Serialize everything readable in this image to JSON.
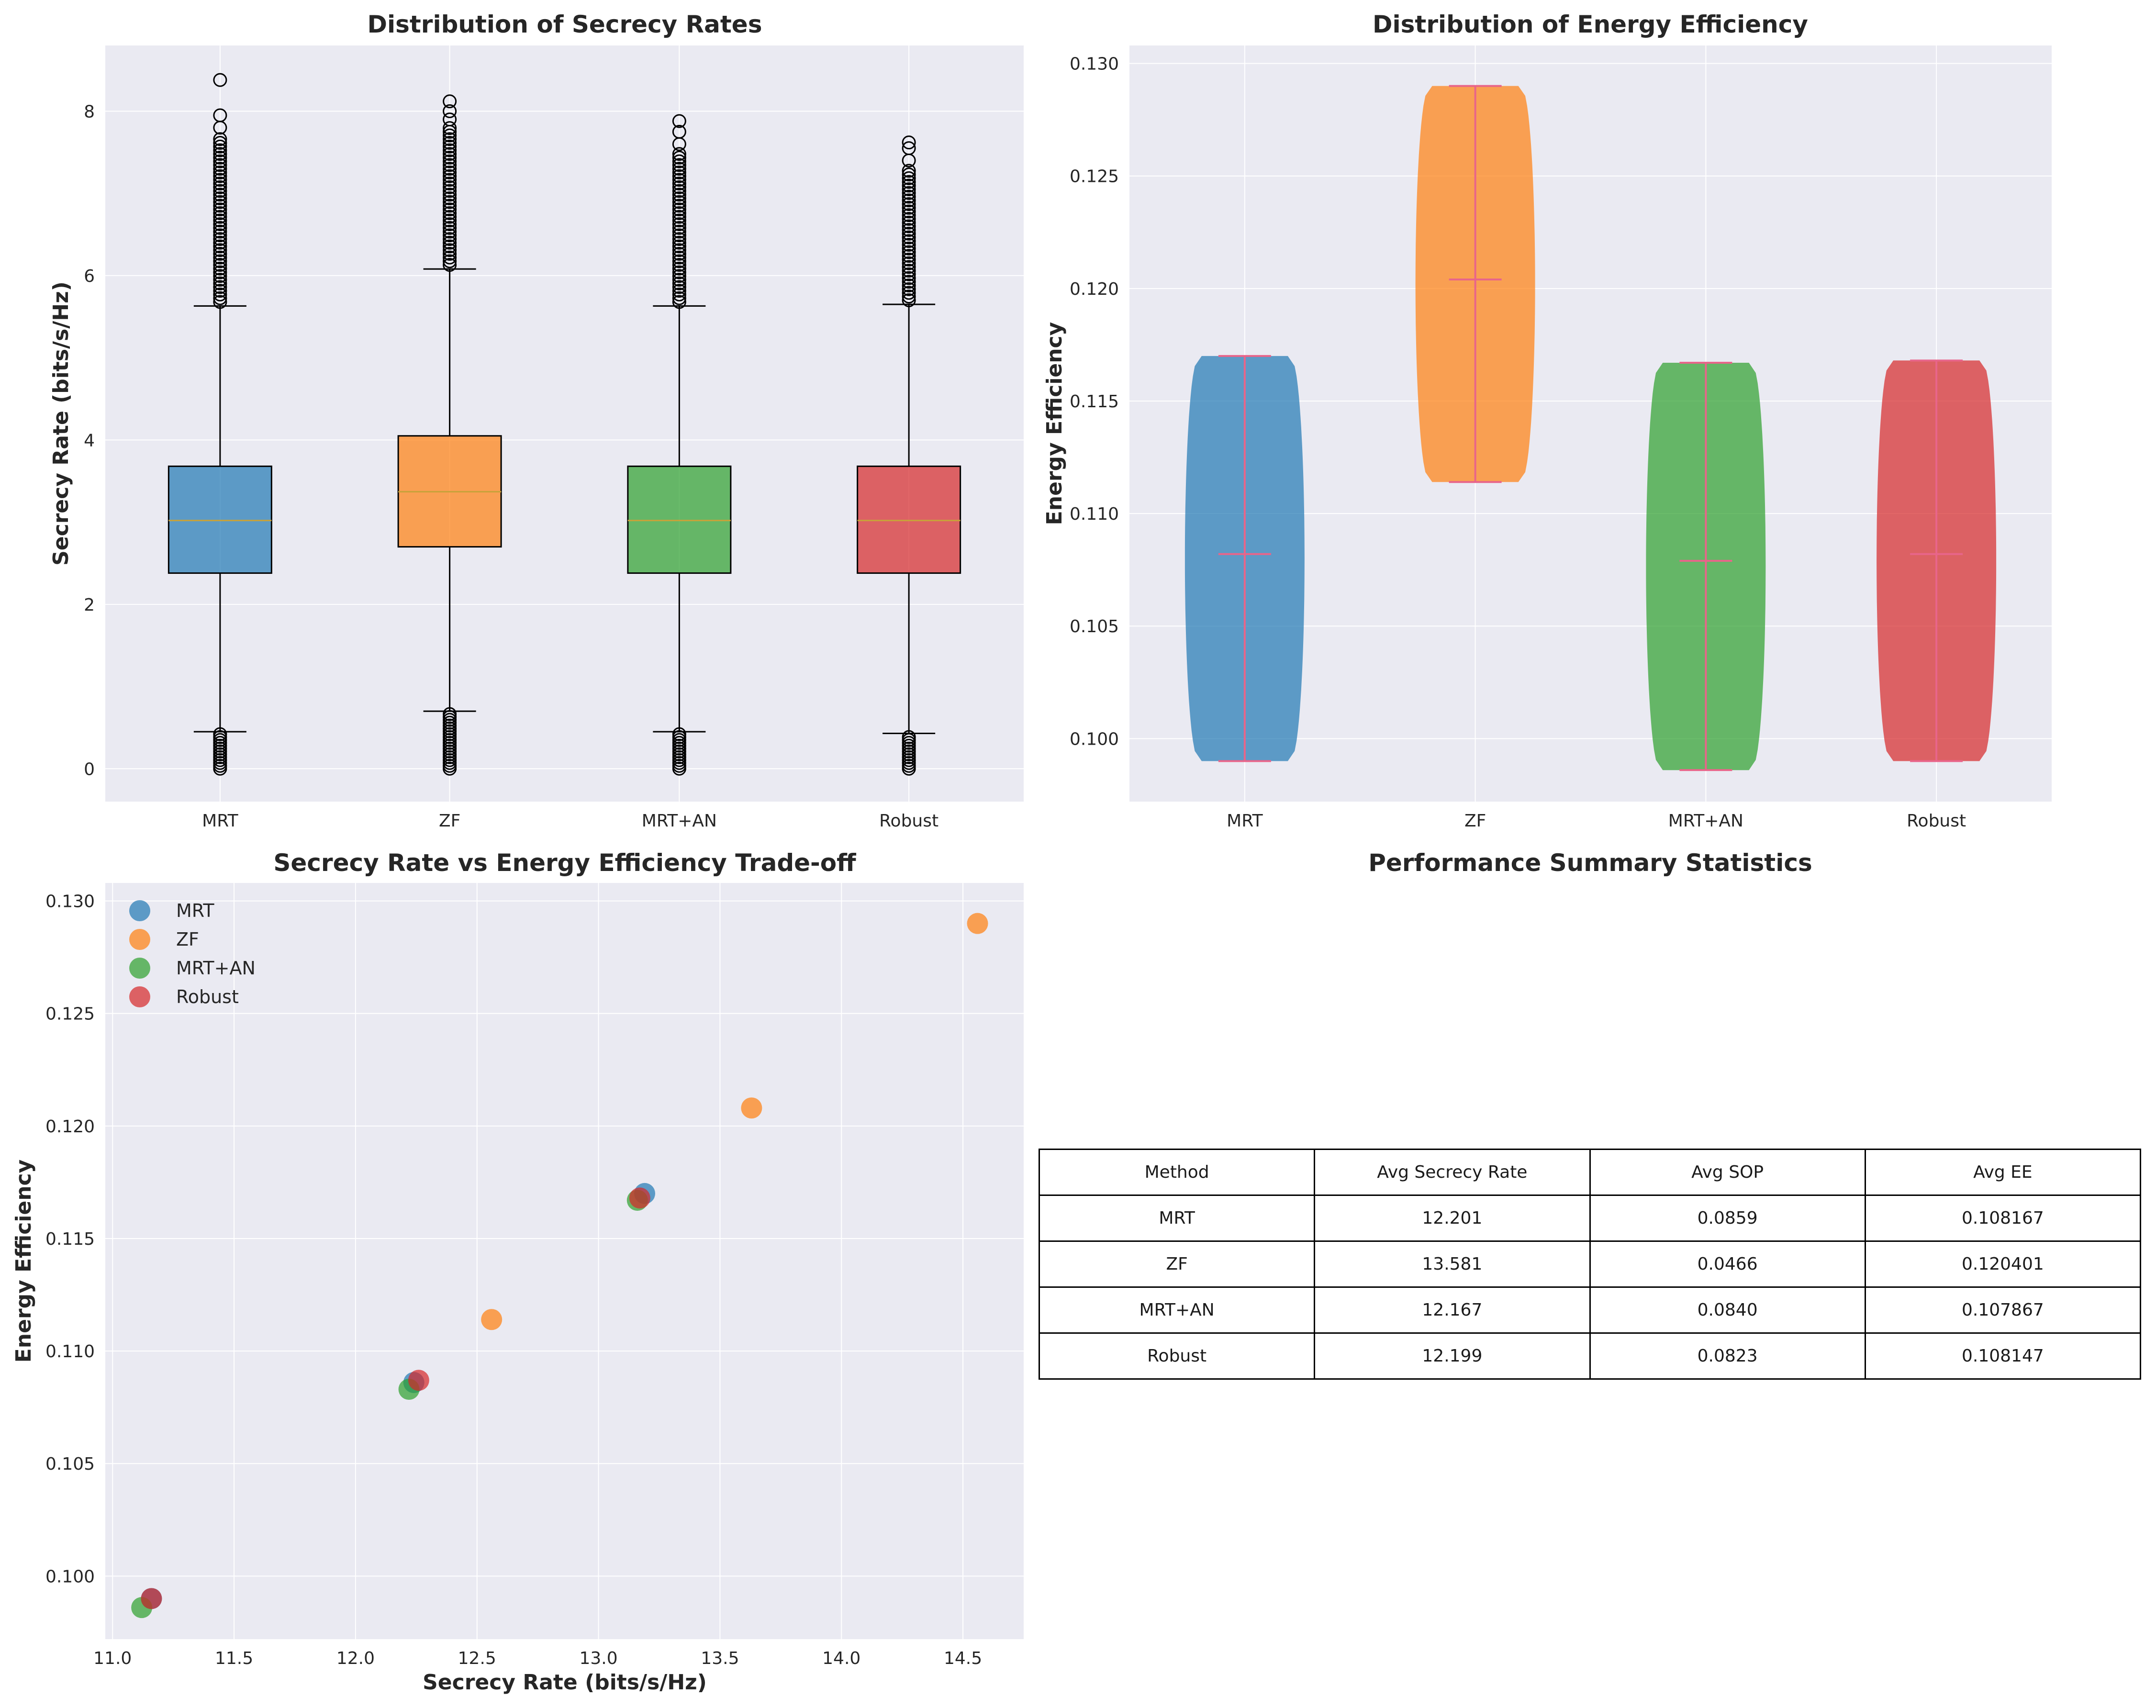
{
  "colors": {
    "MRT": "#1f77b4",
    "ZF": "#ff7f0e",
    "MRT+AN": "#2ca02c",
    "Robust": "#d62728",
    "violin_lines": "#e8658a",
    "median_line": "#c8a23a",
    "panel_bg": "#eaeaf2",
    "grid": "#ffffff"
  },
  "chart_data": [
    {
      "type": "box",
      "title": "Distribution of Secrecy Rates",
      "xlabel": "",
      "ylabel": "Secrecy Rate (bits/s/Hz)",
      "ylim": [
        -0.4,
        8.8
      ],
      "yticks": [
        0,
        2,
        4,
        6,
        8
      ],
      "categories": [
        "MRT",
        "ZF",
        "MRT+AN",
        "Robust"
      ],
      "series": [
        {
          "name": "MRT",
          "q1": 2.38,
          "median": 3.02,
          "q3": 3.68,
          "whisker_low": 0.45,
          "whisker_high": 5.63,
          "out_low_min": 0.0,
          "out_high_max": 8.38,
          "extreme_outliers": [
            7.8,
            7.95,
            8.38
          ]
        },
        {
          "name": "ZF",
          "q1": 2.7,
          "median": 3.37,
          "q3": 4.05,
          "whisker_low": 0.7,
          "whisker_high": 6.08,
          "out_low_min": 0.0,
          "out_high_max": 8.12,
          "extreme_outliers": [
            7.9,
            8.0,
            8.12
          ]
        },
        {
          "name": "MRT+AN",
          "q1": 2.38,
          "median": 3.02,
          "q3": 3.68,
          "whisker_low": 0.45,
          "whisker_high": 5.63,
          "out_low_min": 0.0,
          "out_high_max": 7.88,
          "extreme_outliers": [
            7.6,
            7.75,
            7.88
          ]
        },
        {
          "name": "Robust",
          "q1": 2.38,
          "median": 3.02,
          "q3": 3.68,
          "whisker_low": 0.43,
          "whisker_high": 5.65,
          "out_low_min": 0.0,
          "out_high_max": 7.62,
          "extreme_outliers": [
            7.4,
            7.55,
            7.62
          ]
        }
      ]
    },
    {
      "type": "violin",
      "title": "Distribution of Energy Efficiency",
      "xlabel": "",
      "ylabel": "Energy Efficiency",
      "ylim": [
        0.0972,
        0.1308
      ],
      "yticks": [
        0.1,
        0.105,
        0.11,
        0.115,
        0.12,
        0.125,
        0.13
      ],
      "ytick_labels": [
        "0.100",
        "0.105",
        "0.110",
        "0.115",
        "0.120",
        "0.125",
        "0.130"
      ],
      "categories": [
        "MRT",
        "ZF",
        "MRT+AN",
        "Robust"
      ],
      "series": [
        {
          "name": "MRT",
          "min": 0.099,
          "max": 0.117,
          "mean": 0.1082
        },
        {
          "name": "ZF",
          "min": 0.1114,
          "max": 0.129,
          "mean": 0.1204
        },
        {
          "name": "MRT+AN",
          "min": 0.0986,
          "max": 0.1167,
          "mean": 0.1079
        },
        {
          "name": "Robust",
          "min": 0.099,
          "max": 0.1168,
          "mean": 0.1082
        }
      ]
    },
    {
      "type": "scatter",
      "title": "Secrecy Rate vs Energy Efficiency Trade-off",
      "xlabel": "Secrecy Rate (bits/s/Hz)",
      "ylabel": "Energy Efficiency",
      "xlim": [
        10.97,
        14.75
      ],
      "ylim": [
        0.0972,
        0.1308
      ],
      "xticks": [
        11.0,
        11.5,
        12.0,
        12.5,
        13.0,
        13.5,
        14.0,
        14.5
      ],
      "xtick_labels": [
        "11.0",
        "11.5",
        "12.0",
        "12.5",
        "13.0",
        "13.5",
        "14.0",
        "14.5"
      ],
      "yticks": [
        0.1,
        0.105,
        0.11,
        0.115,
        0.12,
        0.125,
        0.13
      ],
      "ytick_labels": [
        "0.100",
        "0.105",
        "0.110",
        "0.115",
        "0.120",
        "0.125",
        "0.130"
      ],
      "legend": "top-left",
      "series": [
        {
          "name": "MRT",
          "points": [
            [
              11.16,
              0.099
            ],
            [
              12.24,
              0.1086
            ],
            [
              13.19,
              0.117
            ]
          ]
        },
        {
          "name": "ZF",
          "points": [
            [
              12.56,
              0.1114
            ],
            [
              13.63,
              0.1208
            ],
            [
              14.56,
              0.129
            ]
          ]
        },
        {
          "name": "MRT+AN",
          "points": [
            [
              11.12,
              0.0986
            ],
            [
              12.22,
              0.1083
            ],
            [
              13.16,
              0.1167
            ]
          ]
        },
        {
          "name": "Robust",
          "points": [
            [
              11.16,
              0.099
            ],
            [
              12.26,
              0.1087
            ],
            [
              13.17,
              0.1168
            ]
          ]
        }
      ]
    },
    {
      "type": "table",
      "title": "Performance Summary Statistics",
      "columns": [
        "Method",
        "Avg Secrecy Rate",
        "Avg SOP",
        "Avg EE"
      ],
      "rows": [
        [
          "MRT",
          "12.201",
          "0.0859",
          "0.108167"
        ],
        [
          "ZF",
          "13.581",
          "0.0466",
          "0.120401"
        ],
        [
          "MRT+AN",
          "12.167",
          "0.0840",
          "0.107867"
        ],
        [
          "Robust",
          "12.199",
          "0.0823",
          "0.108147"
        ]
      ]
    }
  ]
}
